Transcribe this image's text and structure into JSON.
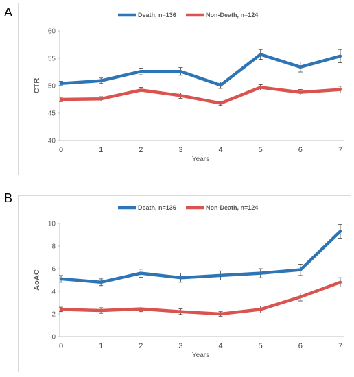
{
  "chart_data": [
    {
      "type": "line",
      "panel_label": "A",
      "x": [
        0,
        1,
        2,
        3,
        4,
        5,
        6,
        7
      ],
      "xlabel": "Years",
      "ylabel": "CTR",
      "ylim": [
        40,
        60
      ],
      "yticks": [
        40,
        45,
        50,
        55,
        60
      ],
      "grid": false,
      "legend_position": "top",
      "series": [
        {
          "name": "Death, n=136",
          "color": "#2e75b6",
          "values": [
            50.4,
            50.9,
            52.6,
            52.6,
            50.1,
            55.7,
            53.4,
            55.4
          ],
          "errors": [
            0.4,
            0.5,
            0.6,
            0.7,
            0.6,
            0.9,
            0.9,
            1.2
          ]
        },
        {
          "name": "Non-Death, n=124",
          "color": "#d9534f",
          "values": [
            47.5,
            47.6,
            49.2,
            48.2,
            46.8,
            49.7,
            48.8,
            49.3
          ],
          "errors": [
            0.4,
            0.4,
            0.5,
            0.5,
            0.4,
            0.5,
            0.5,
            0.6
          ]
        }
      ]
    },
    {
      "type": "line",
      "panel_label": "B",
      "x": [
        0,
        1,
        2,
        3,
        4,
        5,
        6,
        7
      ],
      "xlabel": "Years",
      "ylabel": "AoAC",
      "ylim": [
        0,
        10
      ],
      "yticks": [
        0,
        2,
        4,
        6,
        8,
        10
      ],
      "grid": false,
      "legend_position": "top",
      "series": [
        {
          "name": "Death, n=136",
          "color": "#2e75b6",
          "values": [
            5.1,
            4.8,
            5.6,
            5.2,
            5.4,
            5.6,
            5.9,
            9.3
          ],
          "errors": [
            0.3,
            0.3,
            0.35,
            0.4,
            0.4,
            0.4,
            0.5,
            0.6
          ]
        },
        {
          "name": "Non-Death, n=124",
          "color": "#d9534f",
          "values": [
            2.4,
            2.3,
            2.45,
            2.2,
            2.0,
            2.4,
            3.5,
            4.8
          ],
          "errors": [
            0.2,
            0.25,
            0.25,
            0.25,
            0.2,
            0.3,
            0.35,
            0.4
          ]
        }
      ]
    }
  ]
}
